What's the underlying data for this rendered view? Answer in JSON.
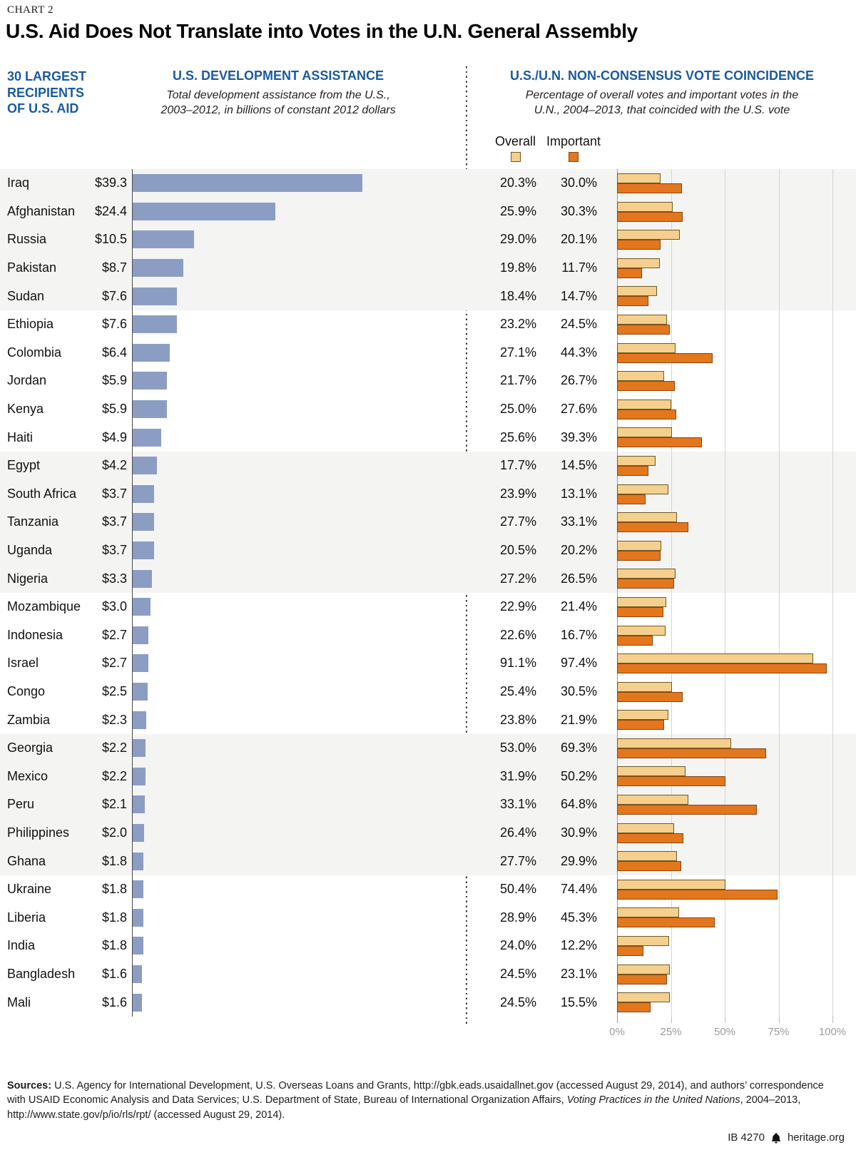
{
  "page": {
    "kicker": "CHART 2",
    "title": "U.S. Aid Does Not Translate into Votes in the U.N. General Assembly"
  },
  "columns": {
    "recipients": {
      "title": "30 LARGEST\nRECIPIENTS\nOF U.S. AID"
    },
    "assistance": {
      "title": "U.S. DEVELOPMENT ASSISTANCE",
      "subtitle": "Total development assistance from the U.S.,\n2003–2012, in billions of constant 2012 dollars"
    },
    "votes": {
      "title": "U.S./U.N. NON-CONSENSUS VOTE COINCIDENCE",
      "subtitle": "Percentage of overall votes and important votes in the\nU.N., 2004–2013, that coincided with the U.S. vote"
    }
  },
  "legend": {
    "overall_label": "Overall",
    "important_label": "Important"
  },
  "chart_data": {
    "type": "bar",
    "orientation": "horizontal",
    "title": "U.S. Aid Does Not Translate into Votes in the U.N. General Assembly",
    "categories": [
      "Iraq",
      "Afghanistan",
      "Russia",
      "Pakistan",
      "Sudan",
      "Ethiopia",
      "Colombia",
      "Jordan",
      "Kenya",
      "Haiti",
      "Egypt",
      "South Africa",
      "Tanzania",
      "Uganda",
      "Nigeria",
      "Mozambique",
      "Indonesia",
      "Israel",
      "Congo",
      "Zambia",
      "Georgia",
      "Mexico",
      "Peru",
      "Philippines",
      "Ghana",
      "Ukraine",
      "Liberia",
      "India",
      "Bangladesh",
      "Mali"
    ],
    "series": [
      {
        "name": "U.S. development assistance, 2003–2012",
        "unit": "billions of constant 2012 dollars",
        "values": [
          39.3,
          24.4,
          10.5,
          8.7,
          7.6,
          7.6,
          6.4,
          5.9,
          5.9,
          4.9,
          4.2,
          3.7,
          3.7,
          3.7,
          3.3,
          3.0,
          2.7,
          2.7,
          2.5,
          2.3,
          2.2,
          2.2,
          2.1,
          2.0,
          1.8,
          1.8,
          1.8,
          1.8,
          1.6,
          1.6
        ]
      },
      {
        "name": "Overall vote coincidence with the U.S., 2004–2013",
        "unit": "%",
        "values": [
          20.3,
          25.9,
          29.0,
          19.8,
          18.4,
          23.2,
          27.1,
          21.7,
          25.0,
          25.6,
          17.7,
          23.9,
          27.7,
          20.5,
          27.2,
          22.9,
          22.6,
          91.1,
          25.4,
          23.8,
          53.0,
          31.9,
          33.1,
          26.4,
          27.7,
          50.4,
          28.9,
          24.0,
          24.5,
          24.5
        ]
      },
      {
        "name": "Important vote coincidence with the U.S., 2004–2013",
        "unit": "%",
        "values": [
          30.0,
          30.3,
          20.1,
          11.7,
          14.7,
          24.5,
          44.3,
          26.7,
          27.6,
          39.3,
          14.5,
          13.1,
          33.1,
          20.2,
          26.5,
          21.4,
          16.7,
          97.4,
          30.5,
          21.9,
          69.3,
          50.2,
          64.8,
          30.9,
          29.9,
          74.4,
          45.3,
          12.2,
          23.1,
          15.5
        ]
      }
    ],
    "aid_axis": {
      "min": 0,
      "max_bar_value": 39.3,
      "gridlines": false
    },
    "vote_axis": {
      "min": 0,
      "max": 100,
      "ticks": [
        "0%",
        "25%",
        "50%",
        "75%",
        "100%"
      ],
      "gridlines": true
    },
    "legend_position": "top-right",
    "row_band_group_size": 5
  },
  "colors": {
    "heading_blue": "#1a5a9e",
    "aid_bar": "#8c9dc4",
    "overall_bar": "#f5cf8d",
    "overall_bar_border": "#6f5a25",
    "important_bar": "#e2771e",
    "important_bar_border": "#8c4511",
    "row_band": "#f4f4f3",
    "gridline": "#d4d4d4"
  },
  "footer": {
    "sources_label": "Sources:",
    "sources_part1": " U.S. Agency for International Development, U.S. Overseas Loans and Grants, http://gbk.eads.usaidallnet.gov (accessed August 29, 2014), and authors’ correspondence with USAID Economic Analysis and Data Services; U.S. Department of State, Bureau of International Organization Affairs, ",
    "sources_italic": "Voting Practices in the United Nations",
    "sources_part2": ", 2004–2013, http://www.state.gov/p/io/rls/rpt/ (accessed August 29, 2014).",
    "report_id": "IB 4270",
    "brand": "heritage.org"
  }
}
